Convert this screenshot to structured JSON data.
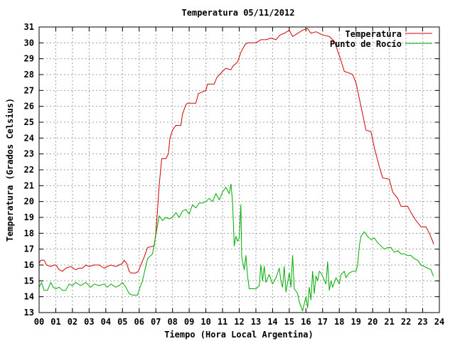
{
  "chart_data": {
    "type": "line",
    "title": "Temperatura 05/11/2012",
    "xlabel": "Tiempo (Hora Local Argentina)",
    "ylabel": "Temperatura (Grados Celsius)",
    "xlim": [
      0,
      24
    ],
    "ylim": [
      13,
      31
    ],
    "x_ticks": [
      "00",
      "01",
      "02",
      "03",
      "04",
      "05",
      "06",
      "07",
      "08",
      "09",
      "10",
      "11",
      "12",
      "13",
      "14",
      "15",
      "16",
      "17",
      "18",
      "19",
      "20",
      "21",
      "22",
      "23",
      "24"
    ],
    "y_ticks": [
      "13",
      "14",
      "15",
      "16",
      "17",
      "18",
      "19",
      "20",
      "21",
      "22",
      "23",
      "24",
      "25",
      "26",
      "27",
      "28",
      "29",
      "30",
      "31"
    ],
    "grid": true,
    "legend_position": "top-right",
    "series": [
      {
        "name": "Temperatura",
        "color": "#d40000",
        "points": [
          [
            0.0,
            16.1
          ],
          [
            0.1,
            16.3
          ],
          [
            0.3,
            16.3
          ],
          [
            0.45,
            16.0
          ],
          [
            0.7,
            15.9
          ],
          [
            0.9,
            16.0
          ],
          [
            1.0,
            16.0
          ],
          [
            1.2,
            15.7
          ],
          [
            1.4,
            15.6
          ],
          [
            1.6,
            15.8
          ],
          [
            1.9,
            15.9
          ],
          [
            2.2,
            15.7
          ],
          [
            2.4,
            15.8
          ],
          [
            2.6,
            15.8
          ],
          [
            2.8,
            16.0
          ],
          [
            3.0,
            15.9
          ],
          [
            3.3,
            16.0
          ],
          [
            3.6,
            16.0
          ],
          [
            3.9,
            15.8
          ],
          [
            4.1,
            15.9
          ],
          [
            4.3,
            16.0
          ],
          [
            4.6,
            15.9
          ],
          [
            4.8,
            16.0
          ],
          [
            5.0,
            16.1
          ],
          [
            5.1,
            16.3
          ],
          [
            5.25,
            16.1
          ],
          [
            5.4,
            15.6
          ],
          [
            5.5,
            15.5
          ],
          [
            5.8,
            15.5
          ],
          [
            5.95,
            15.6
          ],
          [
            6.1,
            16.0
          ],
          [
            6.3,
            16.5
          ],
          [
            6.5,
            17.1
          ],
          [
            6.9,
            17.2
          ],
          [
            7.0,
            18.0
          ],
          [
            7.1,
            19.5
          ],
          [
            7.2,
            21.0
          ],
          [
            7.35,
            22.7
          ],
          [
            7.6,
            22.7
          ],
          [
            7.75,
            23.0
          ],
          [
            7.85,
            24.0
          ],
          [
            8.0,
            24.5
          ],
          [
            8.2,
            24.8
          ],
          [
            8.5,
            24.8
          ],
          [
            8.6,
            25.5
          ],
          [
            8.8,
            26.1
          ],
          [
            8.9,
            26.2
          ],
          [
            9.4,
            26.2
          ],
          [
            9.55,
            26.8
          ],
          [
            10.0,
            27.0
          ],
          [
            10.1,
            27.4
          ],
          [
            10.5,
            27.4
          ],
          [
            10.65,
            27.8
          ],
          [
            11.0,
            28.2
          ],
          [
            11.2,
            28.4
          ],
          [
            11.5,
            28.3
          ],
          [
            11.6,
            28.5
          ],
          [
            11.9,
            28.8
          ],
          [
            12.1,
            29.4
          ],
          [
            12.35,
            29.9
          ],
          [
            12.5,
            30.0
          ],
          [
            13.0,
            30.0
          ],
          [
            13.3,
            30.2
          ],
          [
            13.6,
            30.2
          ],
          [
            13.9,
            30.3
          ],
          [
            14.2,
            30.2
          ],
          [
            14.45,
            30.5
          ],
          [
            14.7,
            30.6
          ],
          [
            15.0,
            30.8
          ],
          [
            15.2,
            30.4
          ],
          [
            15.5,
            30.6
          ],
          [
            15.8,
            30.8
          ],
          [
            16.1,
            30.9
          ],
          [
            16.3,
            30.6
          ],
          [
            16.6,
            30.7
          ],
          [
            17.0,
            30.5
          ],
          [
            17.4,
            30.4
          ],
          [
            17.7,
            30.1
          ],
          [
            18.0,
            29.2
          ],
          [
            18.3,
            28.2
          ],
          [
            18.6,
            28.1
          ],
          [
            18.8,
            28.0
          ],
          [
            19.0,
            27.5
          ],
          [
            19.2,
            26.5
          ],
          [
            19.4,
            25.5
          ],
          [
            19.6,
            24.5
          ],
          [
            19.9,
            24.4
          ],
          [
            20.1,
            23.4
          ],
          [
            20.4,
            22.2
          ],
          [
            20.6,
            21.5
          ],
          [
            21.0,
            21.4
          ],
          [
            21.2,
            20.6
          ],
          [
            21.5,
            20.2
          ],
          [
            21.7,
            19.7
          ],
          [
            22.1,
            19.7
          ],
          [
            22.3,
            19.3
          ],
          [
            22.6,
            18.8
          ],
          [
            22.9,
            18.4
          ],
          [
            23.2,
            18.4
          ],
          [
            23.4,
            18.0
          ],
          [
            23.6,
            17.5
          ],
          [
            23.65,
            17.3
          ]
        ]
      },
      {
        "name": "Punto de Rocío",
        "color": "#00aa00",
        "points": [
          [
            0.0,
            14.6
          ],
          [
            0.15,
            14.9
          ],
          [
            0.3,
            14.4
          ],
          [
            0.5,
            14.4
          ],
          [
            0.7,
            14.9
          ],
          [
            0.85,
            14.6
          ],
          [
            1.0,
            14.5
          ],
          [
            1.2,
            14.6
          ],
          [
            1.4,
            14.4
          ],
          [
            1.6,
            14.4
          ],
          [
            1.8,
            14.8
          ],
          [
            2.0,
            14.7
          ],
          [
            2.2,
            14.9
          ],
          [
            2.5,
            14.7
          ],
          [
            2.8,
            14.9
          ],
          [
            3.1,
            14.6
          ],
          [
            3.3,
            14.8
          ],
          [
            3.6,
            14.7
          ],
          [
            3.9,
            14.8
          ],
          [
            4.1,
            14.6
          ],
          [
            4.3,
            14.8
          ],
          [
            4.6,
            14.6
          ],
          [
            4.8,
            14.7
          ],
          [
            5.0,
            14.9
          ],
          [
            5.2,
            14.6
          ],
          [
            5.4,
            14.2
          ],
          [
            5.6,
            14.1
          ],
          [
            5.9,
            14.1
          ],
          [
            6.05,
            14.6
          ],
          [
            6.2,
            15.0
          ],
          [
            6.5,
            16.4
          ],
          [
            6.8,
            16.7
          ],
          [
            7.0,
            17.9
          ],
          [
            7.2,
            19.1
          ],
          [
            7.4,
            18.8
          ],
          [
            7.6,
            19.0
          ],
          [
            7.8,
            18.9
          ],
          [
            8.0,
            19.0
          ],
          [
            8.2,
            19.3
          ],
          [
            8.4,
            19.0
          ],
          [
            8.6,
            19.4
          ],
          [
            8.8,
            19.5
          ],
          [
            9.0,
            19.2
          ],
          [
            9.2,
            19.8
          ],
          [
            9.4,
            19.6
          ],
          [
            9.6,
            19.9
          ],
          [
            9.8,
            19.9
          ],
          [
            10.0,
            20.0
          ],
          [
            10.2,
            20.2
          ],
          [
            10.4,
            20.0
          ],
          [
            10.6,
            20.5
          ],
          [
            10.8,
            20.1
          ],
          [
            11.0,
            20.6
          ],
          [
            11.2,
            20.9
          ],
          [
            11.4,
            20.5
          ],
          [
            11.5,
            21.1
          ],
          [
            11.6,
            20.0
          ],
          [
            11.7,
            17.2
          ],
          [
            11.8,
            17.8
          ],
          [
            11.9,
            17.5
          ],
          [
            12.0,
            17.7
          ],
          [
            12.1,
            19.8
          ],
          [
            12.15,
            16.5
          ],
          [
            12.3,
            15.7
          ],
          [
            12.4,
            16.6
          ],
          [
            12.5,
            15.3
          ],
          [
            12.6,
            14.5
          ],
          [
            12.8,
            14.5
          ],
          [
            13.0,
            14.5
          ],
          [
            13.2,
            14.7
          ],
          [
            13.3,
            16.0
          ],
          [
            13.4,
            15.0
          ],
          [
            13.5,
            15.9
          ],
          [
            13.6,
            14.9
          ],
          [
            13.8,
            15.4
          ],
          [
            14.0,
            14.8
          ],
          [
            14.2,
            15.2
          ],
          [
            14.4,
            15.8
          ],
          [
            14.5,
            15.0
          ],
          [
            14.6,
            14.6
          ],
          [
            14.7,
            15.9
          ],
          [
            14.8,
            14.3
          ],
          [
            15.0,
            15.5
          ],
          [
            15.1,
            14.6
          ],
          [
            15.2,
            16.6
          ],
          [
            15.3,
            14.5
          ],
          [
            15.5,
            14.2
          ],
          [
            15.6,
            13.7
          ],
          [
            15.8,
            13.1
          ],
          [
            16.0,
            14.0
          ],
          [
            16.1,
            13.3
          ],
          [
            16.2,
            14.6
          ],
          [
            16.3,
            13.8
          ],
          [
            16.4,
            15.6
          ],
          [
            16.5,
            14.2
          ],
          [
            16.6,
            15.3
          ],
          [
            16.7,
            15.0
          ],
          [
            16.8,
            15.6
          ],
          [
            16.9,
            15.5
          ],
          [
            17.0,
            15.3
          ],
          [
            17.2,
            14.8
          ],
          [
            17.3,
            16.2
          ],
          [
            17.4,
            14.4
          ],
          [
            17.5,
            15.0
          ],
          [
            17.6,
            14.6
          ],
          [
            17.8,
            15.2
          ],
          [
            18.0,
            14.8
          ],
          [
            18.1,
            15.4
          ],
          [
            18.3,
            15.6
          ],
          [
            18.4,
            15.2
          ],
          [
            18.6,
            15.5
          ],
          [
            18.8,
            15.6
          ],
          [
            19.0,
            15.6
          ],
          [
            19.1,
            16.0
          ],
          [
            19.2,
            17.2
          ],
          [
            19.3,
            17.8
          ],
          [
            19.5,
            18.1
          ],
          [
            19.7,
            17.8
          ],
          [
            19.9,
            17.6
          ],
          [
            20.1,
            17.7
          ],
          [
            20.3,
            17.4
          ],
          [
            20.5,
            17.2
          ],
          [
            20.7,
            17.0
          ],
          [
            20.9,
            17.1
          ],
          [
            21.1,
            17.1
          ],
          [
            21.3,
            16.8
          ],
          [
            21.5,
            16.9
          ],
          [
            21.7,
            16.7
          ],
          [
            21.9,
            16.7
          ],
          [
            22.1,
            16.6
          ],
          [
            22.3,
            16.6
          ],
          [
            22.5,
            16.4
          ],
          [
            22.7,
            16.3
          ],
          [
            22.9,
            16.0
          ],
          [
            23.1,
            15.9
          ],
          [
            23.3,
            15.8
          ],
          [
            23.5,
            15.7
          ],
          [
            23.6,
            15.4
          ],
          [
            23.65,
            15.3
          ]
        ]
      }
    ]
  }
}
